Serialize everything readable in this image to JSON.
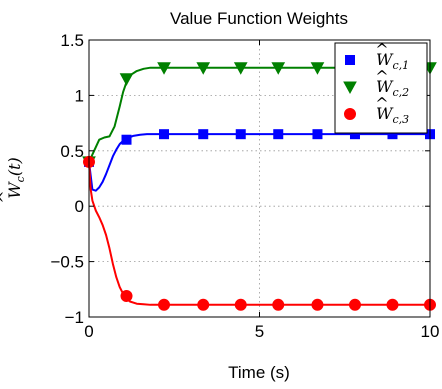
{
  "chart_data": {
    "type": "line",
    "title": "Value Function Weights",
    "xlabel": "Time (s)",
    "ylabel": {
      "base": "W",
      "sub": "c",
      "arg": "(t)"
    },
    "xlim": [
      0,
      10
    ],
    "ylim": [
      -1,
      1.5
    ],
    "xticks": [
      0,
      5,
      10
    ],
    "yticks": [
      -1,
      -0.5,
      0,
      0.5,
      1,
      1.5
    ],
    "xtick_labels": [
      "0",
      "5",
      "10"
    ],
    "ytick_labels": [
      "−1",
      "−0.5",
      "0",
      "0.5",
      "1",
      "1.5"
    ],
    "grid": true,
    "legend_position": "top-right",
    "series": [
      {
        "legend": {
          "base": "W",
          "sub": "c,1"
        },
        "color": "#0000ff",
        "marker": "square",
        "x": [
          0,
          0.1,
          0.2,
          0.3,
          0.4,
          0.5,
          0.6,
          0.7,
          0.8,
          0.9,
          1.0,
          1.1,
          1.3,
          1.5,
          1.7,
          2.0,
          2.5,
          3.0,
          4.0,
          5.0,
          6.0,
          7.0,
          8.0,
          9.0,
          10.0
        ],
        "y": [
          0.4,
          0.15,
          0.14,
          0.17,
          0.22,
          0.29,
          0.37,
          0.45,
          0.51,
          0.56,
          0.59,
          0.61,
          0.635,
          0.645,
          0.65,
          0.65,
          0.65,
          0.65,
          0.65,
          0.65,
          0.65,
          0.65,
          0.65,
          0.65,
          0.65
        ],
        "marker_x": [
          0,
          1.1,
          2.2,
          3.35,
          4.45,
          5.55,
          6.7,
          7.8,
          8.9,
          10.0
        ],
        "marker_y": [
          0.4,
          0.6,
          0.65,
          0.65,
          0.65,
          0.65,
          0.65,
          0.65,
          0.65,
          0.65
        ]
      },
      {
        "legend": {
          "base": "W",
          "sub": "c,2"
        },
        "color": "#008000",
        "marker": "triangle-down",
        "x": [
          0,
          0.15,
          0.3,
          0.45,
          0.6,
          0.75,
          0.9,
          1.0,
          1.1,
          1.25,
          1.4,
          1.6,
          1.8,
          2.0,
          2.5,
          3.0,
          4.0,
          5.0,
          6.0,
          7.0,
          8.0,
          9.0,
          10.0
        ],
        "y": [
          0.4,
          0.5,
          0.6,
          0.62,
          0.63,
          0.72,
          0.9,
          1.03,
          1.12,
          1.19,
          1.22,
          1.24,
          1.25,
          1.25,
          1.25,
          1.25,
          1.25,
          1.25,
          1.25,
          1.25,
          1.25,
          1.25,
          1.25
        ],
        "marker_x": [
          0,
          1.1,
          2.2,
          3.35,
          4.45,
          5.55,
          6.7,
          7.8,
          8.9,
          10.0
        ],
        "marker_y": [
          0.4,
          1.15,
          1.25,
          1.25,
          1.25,
          1.25,
          1.25,
          1.25,
          1.25,
          1.25
        ]
      },
      {
        "legend": {
          "base": "W",
          "sub": "c,3"
        },
        "color": "#ff0000",
        "marker": "circle",
        "x": [
          0,
          0.05,
          0.1,
          0.2,
          0.3,
          0.4,
          0.5,
          0.6,
          0.7,
          0.8,
          0.9,
          1.0,
          1.1,
          1.2,
          1.4,
          1.6,
          1.8,
          2.0,
          2.5,
          3.0,
          4.0,
          5.0,
          6.0,
          7.0,
          8.0,
          9.0,
          10.0
        ],
        "y": [
          0.4,
          0.15,
          0.05,
          -0.04,
          -0.1,
          -0.17,
          -0.26,
          -0.38,
          -0.52,
          -0.64,
          -0.73,
          -0.79,
          -0.83,
          -0.86,
          -0.88,
          -0.885,
          -0.89,
          -0.89,
          -0.89,
          -0.89,
          -0.89,
          -0.89,
          -0.89,
          -0.89,
          -0.89,
          -0.89,
          -0.89
        ],
        "marker_x": [
          0,
          1.1,
          2.2,
          3.35,
          4.45,
          5.55,
          6.7,
          7.8,
          8.9,
          10.0
        ],
        "marker_y": [
          0.4,
          -0.81,
          -0.89,
          -0.89,
          -0.89,
          -0.89,
          -0.89,
          -0.89,
          -0.89,
          -0.89
        ]
      }
    ]
  }
}
